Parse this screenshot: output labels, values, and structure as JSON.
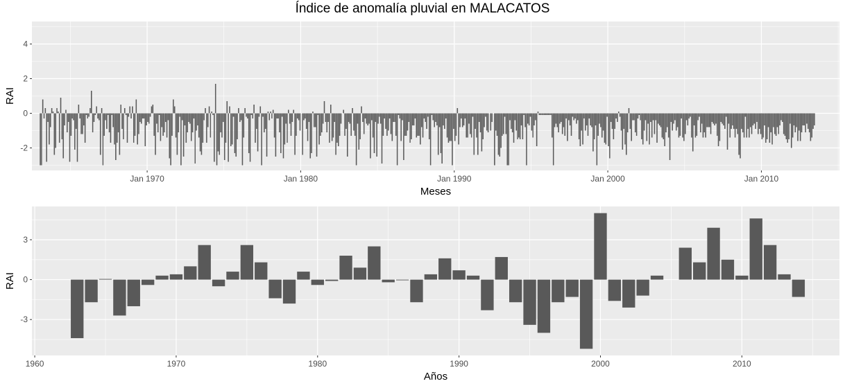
{
  "title": "Índice de anomalía pluvial en MALACATOS",
  "colors": {
    "panel_bg": "#EBEBEB",
    "grid_major": "#FFFFFF",
    "bar_fill": "#595959"
  },
  "chart_data": [
    {
      "type": "bar",
      "description": "Monthly RAI series, 1963–2014",
      "xlabel": "Meses",
      "ylabel": "RAI",
      "x_tick_labels": [
        "Jan 1970",
        "Jan 1980",
        "Jan 1990",
        "Jan 2000",
        "Jan 2010"
      ],
      "y_tick_labels": [
        "-2",
        "0",
        "2",
        "4"
      ],
      "xlim": [
        "1962-07-01",
        "2015-02-01"
      ],
      "ylim": [
        -3.3,
        5.3
      ],
      "grid": true,
      "start": "1963-01",
      "values": [
        -3.0,
        -3.0,
        0.8,
        -0.3,
        0.3,
        -2.8,
        -0.5,
        -1.8,
        -0.8,
        0.3,
        0.1,
        -2.4,
        -2.0,
        0.3,
        0.1,
        -1.7,
        0.9,
        -1.5,
        -2.6,
        -0.7,
        0.2,
        -1.1,
        -0.5,
        -2.8,
        -1.3,
        -0.3,
        -0.4,
        -2.1,
        -0.9,
        -2.8,
        0.5,
        -0.3,
        -1.2,
        -1.2,
        -0.7,
        -1.7,
        -0.1,
        -0.3,
        -0.2,
        0.3,
        1.3,
        -1.1,
        -0.5,
        -0.1,
        0.4,
        -0.3,
        -0.4,
        -2.4,
        0.3,
        -3.0,
        -1.3,
        -0.4,
        -0.9,
        -0.1,
        -1.1,
        -1.7,
        -0.1,
        -0.8,
        -1.8,
        -2.7,
        -1.7,
        -1.1,
        -2.4,
        0.5,
        -0.9,
        -1.5,
        0.3,
        -0.1,
        -1.7,
        -0.2,
        0.4,
        -0.3,
        0.4,
        -1.7,
        -1.3,
        0.8,
        -1.8,
        -1.2,
        -0.5,
        -0.6,
        -0.3,
        -0.3,
        -1.9,
        -0.7,
        -0.5,
        -0.6,
        -0.2,
        0.4,
        0.5,
        -1.3,
        -2.4,
        -0.6,
        -1.1,
        -0.1,
        -1.6,
        -0.8,
        -1.3,
        -1.1,
        -0.5,
        -1.4,
        -0.4,
        -2.6,
        -3.0,
        -1.3,
        0.8,
        0.4,
        -1.4,
        -2.4,
        -1.1,
        -0.2,
        -3.0,
        -0.4,
        -2.5,
        -0.7,
        -1.7,
        -1.1,
        -0.5,
        -0.6,
        -1.6,
        -1.1,
        -0.3,
        -2.9,
        -1.0,
        -0.7,
        -1.4,
        -2.2,
        -2.4,
        -1.7,
        -0.4,
        0.3,
        -1.7,
        -0.8,
        0.4,
        -1.4,
        0.1,
        -0.1,
        -2.8,
        1.7,
        -3.0,
        -2.2,
        -2.4,
        -1.1,
        -1.4,
        -0.5,
        -2.7,
        -1.7,
        0.7,
        -2.8,
        0.4,
        -1.9,
        -1.8,
        -0.2,
        -2.3,
        -2.5,
        -1.5,
        0.3,
        -0.5,
        -0.4,
        -3.0,
        -1.4,
        0.3,
        -0.2,
        -0.3,
        -2.3,
        -2.8,
        -0.1,
        -0.3,
        0.5,
        -1.7,
        -0.9,
        -2.2,
        -0.2,
        0.4,
        -3.0,
        -0.2,
        -1.1,
        -0.9,
        -2.5,
        0.1,
        -0.4,
        0.1,
        -0.3,
        0.2,
        -1.4,
        -2.5,
        -0.3,
        -0.3,
        -1.1,
        -2.3,
        -0.2,
        -2.6,
        -1.8,
        -0.6,
        -1.7,
        0.2,
        -0.6,
        -1.3,
        -0.5,
        0.2,
        -2.4,
        -1.3,
        -0.3,
        -0.4,
        -1.0,
        0.0,
        -2.4,
        -0.4,
        -0.3,
        -0.9,
        -1.6,
        -0.5,
        -2.6,
        -2.3,
        0.1,
        -0.8,
        -0.8,
        -2.5,
        -0.1,
        -1.8,
        -1.3,
        -1.1,
        -0.6,
        0.7,
        -0.5,
        -1.1,
        -0.5,
        -1.7,
        0.5,
        -1.6,
        -1.4,
        -0.5,
        -2.4,
        -1.7,
        -1.9,
        -1.3,
        -0.6,
        0.0,
        0.2,
        -1.3,
        -0.9,
        -2.5,
        -0.5,
        -0.6,
        -1.3,
        0.3,
        -1.0,
        -1.3,
        -3.0,
        -0.6,
        -2.1,
        -1.5,
        0.4,
        -0.5,
        -1.2,
        -0.3,
        -0.6,
        -0.7,
        -0.6,
        -2.6,
        -0.4,
        -1.4,
        -2.3,
        -0.5,
        -2.5,
        -0.6,
        -0.2,
        -0.6,
        -2.9,
        -1.3,
        -0.3,
        -0.9,
        -1.3,
        -1.0,
        -0.3,
        -1.2,
        -1.6,
        -0.5,
        -0.5,
        -1.3,
        -3.0,
        -0.1,
        -0.3,
        -1.6,
        -0.4,
        -2.7,
        -1.3,
        -1.3,
        -1.0,
        -0.5,
        -1.7,
        -1.5,
        -0.7,
        -0.7,
        -0.3,
        -1.4,
        -1.3,
        -1.3,
        -1.8,
        -0.8,
        -1.4,
        -0.3,
        -0.5,
        -0.9,
        -0.2,
        -1.5,
        -3.0,
        -0.1,
        -0.4,
        -0.8,
        -0.5,
        -0.7,
        -2.4,
        -0.8,
        -2.3,
        -2.9,
        -0.7,
        -0.9,
        -0.3,
        -1.4,
        -1.7,
        -1.6,
        -1.6,
        -3.0,
        -0.9,
        -1.6,
        -1.3,
        0.3,
        -1.8,
        -0.8,
        -0.3,
        -0.8,
        -0.7,
        -0.3,
        -1.4,
        -1.4,
        -0.6,
        -1.2,
        -1.4,
        -0.2,
        -2.4,
        -0.9,
        -1.4,
        -2.4,
        -0.5,
        -1.1,
        -2.2,
        -1.5,
        -0.8,
        -0.2,
        -1.0,
        -1.1,
        0.0,
        -1.0,
        -0.5,
        0.0,
        -3.0,
        -1.0,
        -1.3,
        -2.4,
        -2.5,
        -2.0,
        -1.3,
        -1.2,
        -0.2,
        -1.2,
        -3.0,
        -3.0,
        -0.4,
        -0.9,
        -1.1,
        -1.7,
        -0.4,
        -1.0,
        -1.5,
        -1.4,
        -1.5,
        -0.7,
        -1.5,
        -0.1,
        -0.8,
        -3.0,
        -0.6,
        -0.7,
        -0.2,
        -1.0,
        -1.4,
        -0.7,
        -0.4,
        -1.9,
        0.1,
        -0.1,
        -0.1,
        -0.1,
        -0.1,
        -0.1,
        -0.1,
        -0.1,
        -0.1,
        -0.1,
        -0.1,
        -1.4,
        -3.0,
        -0.8,
        -0.6,
        -0.8,
        -1.1,
        -0.6,
        -0.5,
        -1.2,
        -0.8,
        -1.3,
        -0.3,
        -1.6,
        -0.4,
        -0.7,
        -1.3,
        -0.2,
        -0.4,
        -0.3,
        -0.6,
        -0.4,
        -1.5,
        -1.9,
        -1.0,
        -1.8,
        -0.3,
        -1.0,
        -0.7,
        -1.3,
        -0.3,
        -0.7,
        -0.8,
        -2.2,
        -1.5,
        -0.7,
        -3.0,
        -1.3,
        -0.6,
        -0.8,
        -1.4,
        -1.0,
        -1.7,
        -1.8,
        -0.2,
        -1.9,
        -2.6,
        -0.5,
        -0.9,
        -1.5,
        -0.9,
        -0.3,
        -0.5,
        0.1,
        -0.2,
        -1.0,
        -2.1,
        -0.9,
        -1.8,
        -2.4,
        -1.1,
        0.3,
        -0.9,
        -1.6,
        -0.4,
        -0.4,
        -1.1,
        -1.3,
        -0.3,
        -0.1,
        -0.4,
        -1.5,
        -1.8,
        -1.0,
        -0.4,
        -1.6,
        -0.6,
        -1.8,
        -0.5,
        -1.4,
        -0.4,
        -1.2,
        -0.4,
        -1.7,
        -0.6,
        -0.7,
        -0.8,
        -1.4,
        -1.5,
        -1.9,
        -1.1,
        -0.8,
        -1.4,
        -2.7,
        -0.5,
        -1.0,
        -0.6,
        -0.4,
        -1.0,
        -0.8,
        -1.4,
        -1.3,
        -0.3,
        -1.4,
        -1.6,
        -1.2,
        -0.4,
        -0.7,
        -0.3,
        -0.2,
        -1.4,
        -2.2,
        -0.7,
        -1.4,
        -1.3,
        -0.4,
        -0.2,
        -1.1,
        -0.6,
        -1.4,
        -1.1,
        -1.4,
        -0.8,
        -0.8,
        -0.8,
        -1.2,
        -0.5,
        -0.6,
        -0.7,
        -0.6,
        -1.3,
        -1.9,
        -1.6,
        -0.5,
        -0.6,
        -0.7,
        -0.9,
        -0.2,
        -2.1,
        -0.6,
        -1.4,
        -0.9,
        -0.7,
        -0.9,
        -1.4,
        -0.9,
        -1.2,
        -2.4,
        -2.6,
        -0.9,
        -1.1,
        -1.4,
        -0.2,
        -1.4,
        -0.9,
        -1.4,
        -0.8,
        -1.2,
        -0.7,
        -0.6,
        -0.9,
        -0.5,
        -1.2,
        -0.9,
        -1.2,
        -1.5,
        -1.4,
        -0.7,
        -1.7,
        -1.5,
        -0.8,
        -1.7,
        -1.1,
        -1.8,
        -0.8,
        -1.2,
        -1.3,
        -0.8,
        -1.2,
        -0.7,
        -0.4,
        -0.5,
        -1.2,
        -1.3,
        -1.5,
        -1.7,
        -1.5,
        -0.6,
        -2.0,
        -1.4,
        -0.7,
        -1.1,
        -0.8,
        -1.6,
        -1.0,
        -1.6,
        -1.1,
        -0.7,
        -0.7,
        -1.1,
        -0.6,
        -0.9,
        -1.1,
        -1.6,
        -1.4,
        -0.9,
        -0.7
      ]
    },
    {
      "type": "bar",
      "description": "Annual RAI series, 1963–2014",
      "xlabel": "Años",
      "ylabel": "RAI",
      "x_tick_labels": [
        "1960",
        "1970",
        "1980",
        "1990",
        "2000",
        "2010"
      ],
      "y_tick_labels": [
        "-3",
        "0",
        "3"
      ],
      "xlim": [
        1959.8,
        2016.9
      ],
      "ylim": [
        -5.7,
        5.5
      ],
      "grid": true,
      "years": [
        1963,
        1964,
        1965,
        1966,
        1967,
        1968,
        1969,
        1970,
        1971,
        1972,
        1973,
        1974,
        1975,
        1976,
        1977,
        1978,
        1979,
        1980,
        1981,
        1982,
        1983,
        1984,
        1985,
        1986,
        1987,
        1988,
        1989,
        1990,
        1991,
        1992,
        1993,
        1994,
        1995,
        1996,
        1997,
        1998,
        1999,
        2000,
        2001,
        2002,
        2003,
        2004,
        2005,
        2006,
        2007,
        2008,
        2009,
        2010,
        2011,
        2012,
        2013,
        2014
      ],
      "values": [
        -4.4,
        -1.7,
        0.05,
        -2.7,
        -2.0,
        -0.4,
        0.3,
        0.4,
        1.0,
        2.6,
        -0.5,
        0.6,
        2.6,
        1.3,
        -1.4,
        -1.8,
        0.6,
        -0.4,
        -0.1,
        1.8,
        0.9,
        2.5,
        -0.2,
        -0.05,
        -1.7,
        0.4,
        1.6,
        0.7,
        0.3,
        -2.3,
        1.7,
        -1.7,
        -3.4,
        -4.0,
        -1.7,
        -1.3,
        -5.2,
        5.0,
        -1.6,
        -2.1,
        -1.2,
        0.3,
        null,
        2.4,
        1.3,
        3.9,
        1.5,
        0.3,
        4.6,
        2.6,
        0.4,
        -1.3
      ]
    }
  ]
}
